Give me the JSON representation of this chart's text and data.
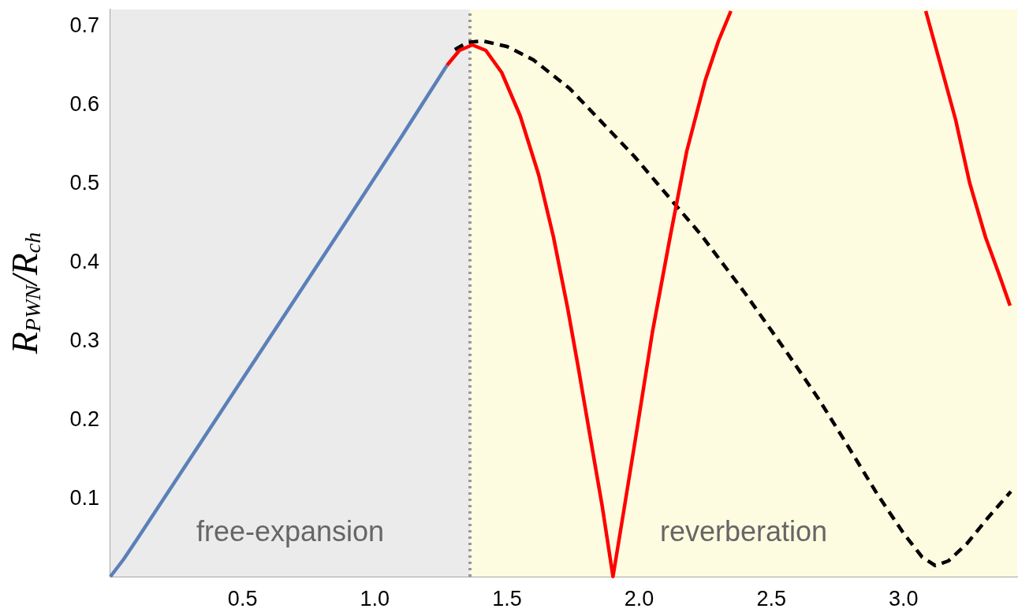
{
  "chart_data": {
    "type": "line",
    "ylabel": "R$_{PWN}$/R$_{ch}$",
    "xlim": [
      0,
      3.43
    ],
    "ylim": [
      0,
      0.72
    ],
    "xticks": [
      {
        "value": 0.5,
        "label": "0.5"
      },
      {
        "value": 1,
        "label": "1.0"
      },
      {
        "value": 1.5,
        "label": "1.5"
      },
      {
        "value": 2,
        "label": "2.0"
      },
      {
        "value": 2.5,
        "label": "2.5"
      },
      {
        "value": 3,
        "label": "3.0"
      }
    ],
    "yticks": [
      0.1,
      0.2,
      0.3,
      0.4,
      0.5,
      0.6,
      0.7
    ],
    "marker": "none",
    "series": [
      {
        "color": "#000000",
        "line_style": "dashed",
        "x": [
          1.303,
          1.35,
          1.408,
          1.5,
          1.6,
          1.736,
          1.85,
          1.983,
          2.132,
          2.234,
          2.4,
          2.562,
          2.68,
          2.78,
          2.9,
          3.0,
          3.07,
          3.12,
          3.17,
          3.24,
          3.32,
          3.406
        ],
        "values": [
          0.669,
          0.678,
          0.68,
          0.673,
          0.656,
          0.62,
          0.58,
          0.533,
          0.474,
          0.434,
          0.36,
          0.283,
          0.225,
          0.171,
          0.105,
          0.055,
          0.025,
          0.014,
          0.02,
          0.042,
          0.075,
          0.108
        ]
      },
      {
        "color": "#ff0000",
        "line_style": "solid",
        "x": [
          1.273,
          1.32,
          1.369,
          1.42,
          1.48,
          1.55,
          1.62,
          1.676,
          1.73,
          1.77,
          1.813,
          1.86,
          1.901,
          1.945,
          1.989,
          2.05,
          2.117,
          2.18,
          2.25,
          2.3,
          2.347,
          2.7,
          3.084,
          3.14,
          3.197,
          3.25,
          3.31,
          3.36,
          3.403
        ],
        "values": [
          0.649,
          0.668,
          0.675,
          0.668,
          0.64,
          0.585,
          0.51,
          0.431,
          0.34,
          0.265,
          0.181,
          0.09,
          0,
          0.09,
          0.181,
          0.31,
          0.431,
          0.54,
          0.63,
          0.68,
          0.718,
          null,
          0.718,
          0.65,
          0.58,
          0.5,
          0.431,
          0.385,
          0.344
        ]
      },
      {
        "color": "#5b80b9",
        "line_style": "solid",
        "x": [
          0,
          0.05,
          0.1,
          0.3,
          0.5,
          0.7,
          0.9,
          1.1,
          1.273
        ],
        "values": [
          0,
          0.022,
          0.047,
          0.149,
          0.251,
          0.353,
          0.455,
          0.558,
          0.649
        ]
      }
    ],
    "bands": [
      {
        "axis": "x",
        "from": 0,
        "to": 1.36,
        "label": "free-expansion",
        "color": "#ebebeb"
      },
      {
        "axis": "x",
        "from": 1.36,
        "to": 3.43,
        "label": "reverberation",
        "color": "#fefce0"
      }
    ],
    "ref_lines": [
      {
        "axis": "x",
        "value": 1.36,
        "color": "#999999",
        "line_style": "dotted"
      }
    ]
  }
}
